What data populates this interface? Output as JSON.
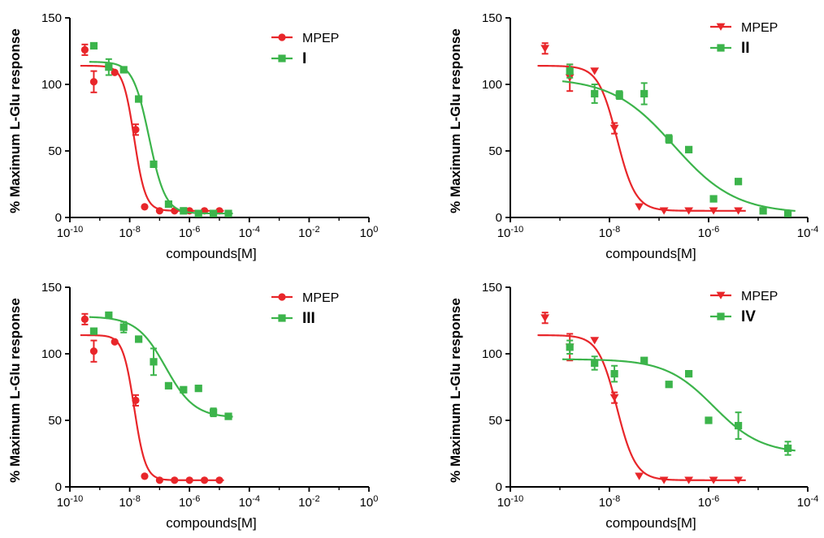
{
  "colors": {
    "red": "#e8262a",
    "green": "#3cb44b",
    "axis": "#000000"
  },
  "chart_data": [
    {
      "type": "line",
      "xlabel": "compounds[M]",
      "ylabel": "% Maximum L-Glu response",
      "xscale": "log",
      "xlim_exp": [
        -10,
        0
      ],
      "xticks_exp": [
        -10,
        -8,
        -6,
        -4,
        -2,
        0
      ],
      "ylim": [
        0,
        150
      ],
      "yticks": [
        0,
        50,
        100,
        150
      ],
      "legend": "top-right",
      "series": [
        {
          "name": "MPEP",
          "color": "#e8262a",
          "marker": "circle",
          "x_exp": [
            -9.5,
            -9.2,
            -8.5,
            -7.8,
            -7.5,
            -7.0,
            -6.5,
            -6.0,
            -5.5,
            -5.0
          ],
          "y": [
            126,
            102,
            109,
            66,
            8,
            5,
            5,
            5,
            5,
            5
          ],
          "err": [
            4,
            8,
            0,
            4,
            1,
            1,
            1,
            1,
            1,
            1
          ],
          "fit": {
            "top": 114,
            "bottom": 5,
            "logec50": -7.85,
            "hill": 2.3
          }
        },
        {
          "name": "I",
          "color": "#3cb44b",
          "marker": "square",
          "x_exp": [
            -9.2,
            -8.7,
            -8.2,
            -7.7,
            -7.2,
            -6.7,
            -6.2,
            -5.7,
            -5.2,
            -4.7
          ],
          "y": [
            129,
            113,
            111,
            89,
            40,
            10,
            5,
            3,
            3,
            3
          ],
          "err": [
            0,
            6,
            0,
            0,
            0,
            0,
            0,
            0,
            0,
            0
          ],
          "fit": {
            "top": 117,
            "bottom": 3,
            "logec50": -7.35,
            "hill": 1.6
          }
        }
      ]
    },
    {
      "type": "line",
      "xlabel": "compounds[M]",
      "ylabel": "% Maximum L-Glu response",
      "xscale": "log",
      "xlim_exp": [
        -10,
        -4
      ],
      "xticks_exp": [
        -10,
        -8,
        -6,
        -4
      ],
      "ylim": [
        0,
        150
      ],
      "yticks": [
        0,
        50,
        100,
        150
      ],
      "legend": "top-right",
      "series": [
        {
          "name": "MPEP",
          "color": "#e8262a",
          "marker": "triangle-down",
          "x_exp": [
            -9.3,
            -8.8,
            -8.3,
            -7.9,
            -7.4,
            -6.9,
            -6.4,
            -5.9,
            -5.4
          ],
          "y": [
            127,
            105,
            110,
            67,
            8,
            5,
            5,
            5,
            5
          ],
          "err": [
            4,
            10,
            0,
            4,
            1,
            1,
            1,
            1,
            1
          ],
          "fit": {
            "top": 114,
            "bottom": 5,
            "logec50": -7.85,
            "hill": 2.3
          }
        },
        {
          "name": "II",
          "color": "#3cb44b",
          "marker": "square",
          "x_exp": [
            -8.8,
            -8.3,
            -7.8,
            -7.3,
            -6.8,
            -6.4,
            -5.9,
            -5.4,
            -4.9,
            -4.4
          ],
          "y": [
            110,
            93,
            92,
            93,
            59,
            51,
            14,
            27,
            5,
            3
          ],
          "err": [
            5,
            7,
            3,
            8,
            3,
            0,
            0,
            0,
            0,
            0
          ],
          "fit": {
            "top": 105,
            "bottom": 3,
            "logec50": -6.7,
            "hill": 0.7
          }
        }
      ]
    },
    {
      "type": "line",
      "xlabel": "compounds[M]",
      "ylabel": "% Maximum L-Glu response",
      "xscale": "log",
      "xlim_exp": [
        -10,
        0
      ],
      "xticks_exp": [
        -10,
        -8,
        -6,
        -4,
        -2,
        0
      ],
      "ylim": [
        0,
        150
      ],
      "yticks": [
        0,
        50,
        100,
        150
      ],
      "legend": "top-right",
      "series": [
        {
          "name": "MPEP",
          "color": "#e8262a",
          "marker": "circle",
          "x_exp": [
            -9.5,
            -9.2,
            -8.5,
            -7.8,
            -7.5,
            -7.0,
            -6.5,
            -6.0,
            -5.5,
            -5.0
          ],
          "y": [
            126,
            102,
            109,
            65,
            8,
            5,
            5,
            5,
            5,
            5
          ],
          "err": [
            4,
            8,
            0,
            4,
            1,
            1,
            1,
            1,
            1,
            1
          ],
          "fit": {
            "top": 114,
            "bottom": 5,
            "logec50": -7.85,
            "hill": 2.3
          }
        },
        {
          "name": "III",
          "color": "#3cb44b",
          "marker": "square",
          "x_exp": [
            -9.2,
            -8.7,
            -8.2,
            -7.7,
            -7.2,
            -6.7,
            -6.2,
            -5.7,
            -5.2,
            -4.7
          ],
          "y": [
            117,
            129,
            120,
            111,
            94,
            76,
            73,
            74,
            56,
            53
          ],
          "err": [
            0,
            0,
            4,
            0,
            10,
            0,
            0,
            0,
            3,
            0
          ],
          "fit": {
            "top": 128,
            "bottom": 52,
            "logec50": -6.8,
            "hill": 0.9
          }
        }
      ]
    },
    {
      "type": "line",
      "xlabel": "compounds[M]",
      "ylabel": "% Maximum L-Glu response",
      "xscale": "log",
      "xlim_exp": [
        -10,
        -4
      ],
      "xticks_exp": [
        -10,
        -8,
        -6,
        -4
      ],
      "ylim": [
        0,
        150
      ],
      "yticks": [
        0,
        50,
        100,
        150
      ],
      "legend": "top-right",
      "series": [
        {
          "name": "MPEP",
          "color": "#e8262a",
          "marker": "triangle-down",
          "x_exp": [
            -9.3,
            -8.8,
            -8.3,
            -7.9,
            -7.4,
            -6.9,
            -6.4,
            -5.9,
            -5.4
          ],
          "y": [
            127,
            105,
            110,
            67,
            8,
            5,
            5,
            5,
            5
          ],
          "err": [
            4,
            10,
            0,
            4,
            1,
            1,
            1,
            1,
            1
          ],
          "fit": {
            "top": 114,
            "bottom": 5,
            "logec50": -7.85,
            "hill": 2.3
          }
        },
        {
          "name": "IV",
          "color": "#3cb44b",
          "marker": "square",
          "x_exp": [
            -8.8,
            -8.3,
            -7.9,
            -7.3,
            -6.8,
            -6.4,
            -6.0,
            -5.4,
            -4.4
          ],
          "y": [
            105,
            93,
            85,
            95,
            77,
            85,
            50,
            46,
            29
          ],
          "err": [
            5,
            5,
            6,
            0,
            0,
            0,
            0,
            10,
            5
          ],
          "fit": {
            "top": 96,
            "bottom": 25,
            "logec50": -5.9,
            "hill": 0.9
          }
        }
      ]
    }
  ]
}
